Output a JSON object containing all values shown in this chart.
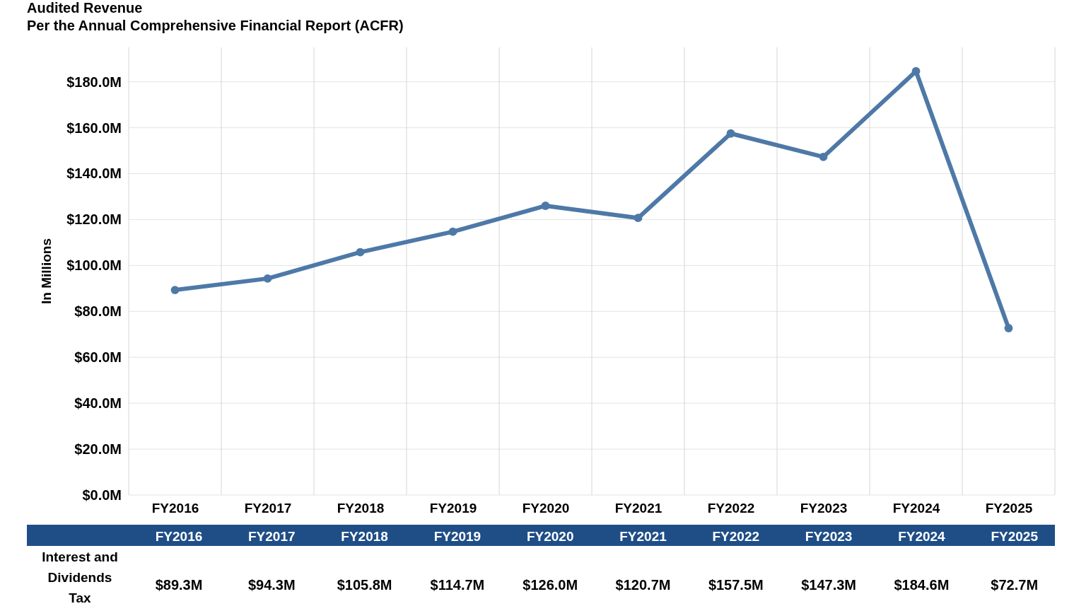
{
  "chart_data": {
    "type": "line",
    "title": "Audited Revenue",
    "subtitle": "Per the Annual Comprehensive Financial Report (ACFR)",
    "ylabel": "In Millions",
    "categories": [
      "FY2016",
      "FY2017",
      "FY2018",
      "FY2019",
      "FY2020",
      "FY2021",
      "FY2022",
      "FY2023",
      "FY2024",
      "FY2025"
    ],
    "series": [
      {
        "name": "Interest and Dividends Tax",
        "color": "#4e79a7",
        "values": [
          89.3,
          94.3,
          105.8,
          114.7,
          126.0,
          120.7,
          157.5,
          147.3,
          184.6,
          72.7
        ],
        "value_labels": [
          "$89.3M",
          "$94.3M",
          "$105.8M",
          "$114.7M",
          "$126.0M",
          "$120.7M",
          "$157.5M",
          "$147.3M",
          "$184.6M",
          "$72.7M"
        ]
      }
    ],
    "ylim": [
      0,
      195
    ],
    "yticks": [
      {
        "value": 0,
        "label": "$0.0M"
      },
      {
        "value": 20,
        "label": "$20.0M"
      },
      {
        "value": 40,
        "label": "$40.0M"
      },
      {
        "value": 60,
        "label": "$60.0M"
      },
      {
        "value": 80,
        "label": "$80.0M"
      },
      {
        "value": 100,
        "label": "$100.0M"
      },
      {
        "value": 120,
        "label": "$120.0M"
      },
      {
        "value": 140,
        "label": "$140.0M"
      },
      {
        "value": 160,
        "label": "$160.0M"
      },
      {
        "value": 180,
        "label": "$180.0M"
      }
    ],
    "grid": true,
    "marker": "circle",
    "line_style": "solid"
  }
}
